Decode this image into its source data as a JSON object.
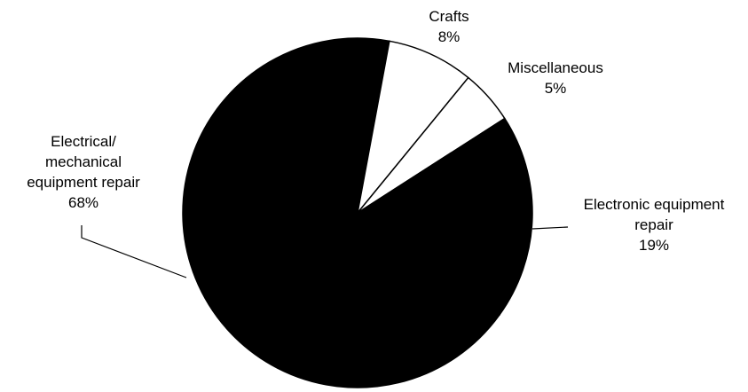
{
  "chart_data": {
    "type": "pie",
    "title": "",
    "slices": [
      {
        "label_lines": [
          "Electrical/",
          "mechanical",
          "equipment repair"
        ],
        "value": 68,
        "value_text": "68%",
        "color": "#000000"
      },
      {
        "label_lines": [
          "Crafts"
        ],
        "value": 8,
        "value_text": "8%",
        "color": "#ffffff"
      },
      {
        "label_lines": [
          "Miscellaneous"
        ],
        "value": 5,
        "value_text": "5%",
        "color": "#ffffff"
      },
      {
        "label_lines": [
          "Electronic equipment",
          "repair"
        ],
        "value": 19,
        "value_text": "19%",
        "color": "#000000"
      }
    ],
    "outline_color": "#000000"
  }
}
